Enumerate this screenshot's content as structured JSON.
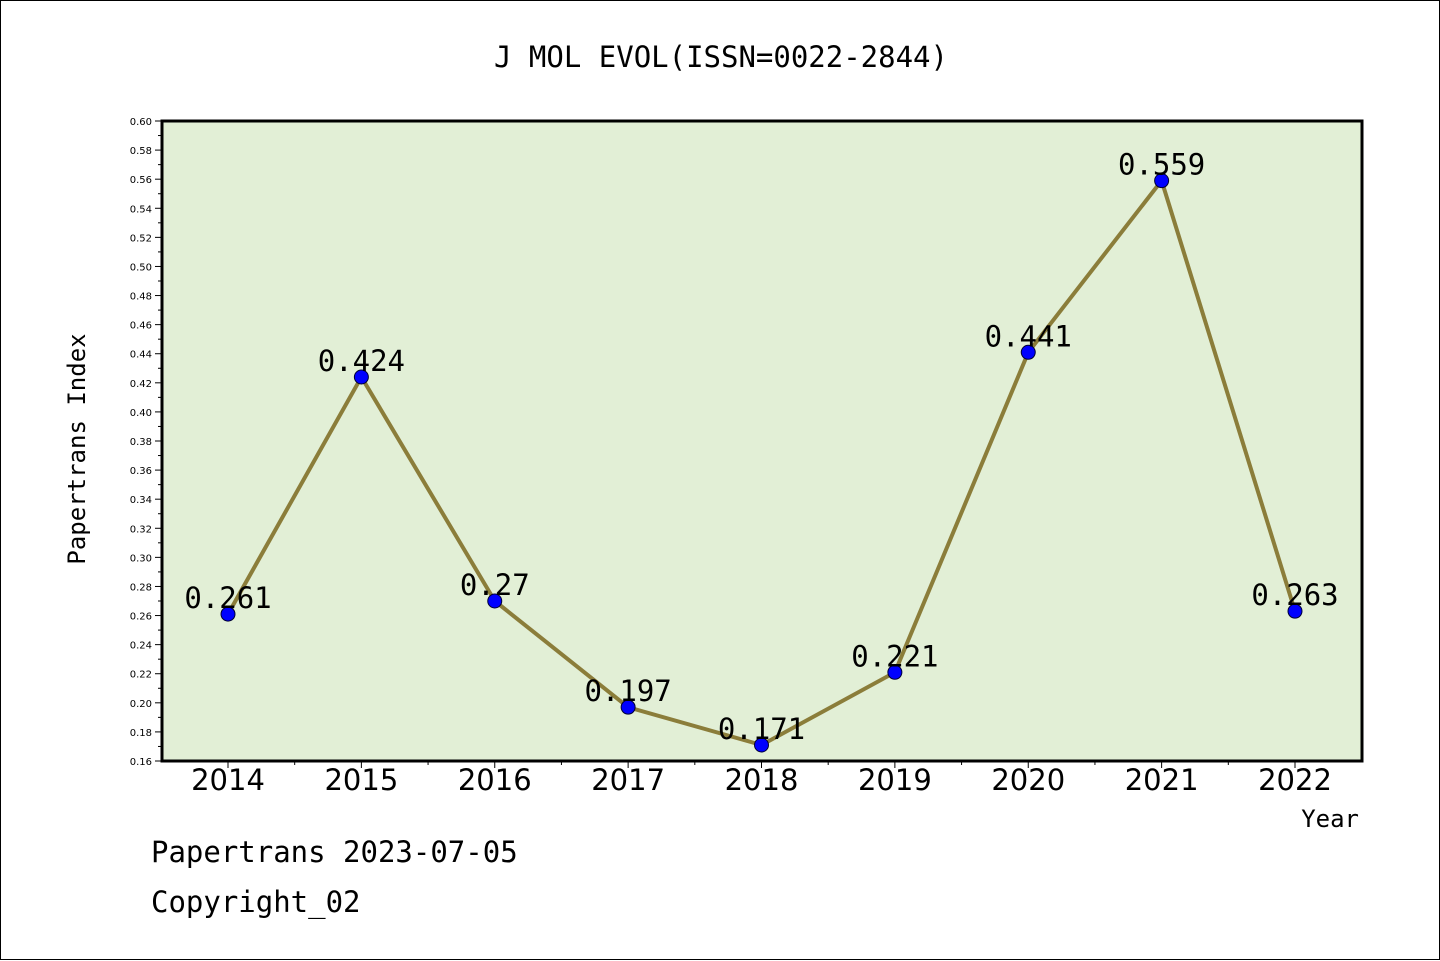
{
  "chart_data": {
    "type": "line",
    "title": "J MOL EVOL(ISSN=0022-2844)",
    "xlabel": "Year",
    "ylabel": "Papertrans Index",
    "categories": [
      "2014",
      "2015",
      "2016",
      "2017",
      "2018",
      "2019",
      "2020",
      "2021",
      "2022"
    ],
    "series": [
      {
        "values": [
          0.261,
          0.424,
          0.27,
          0.197,
          0.171,
          0.221,
          0.441,
          0.559,
          0.263
        ],
        "data_labels": [
          "0.261",
          "0.424",
          "0.27",
          "0.197",
          "0.171",
          "0.221",
          "0.441",
          "0.559",
          "0.263"
        ]
      }
    ],
    "ylim": [
      0.16,
      0.6
    ],
    "y_ticks": [
      "0.16",
      "0.18",
      "0.20",
      "0.22",
      "0.24",
      "0.26",
      "0.28",
      "0.30",
      "0.32",
      "0.34",
      "0.36",
      "0.38",
      "0.40",
      "0.42",
      "0.44",
      "0.46",
      "0.48",
      "0.50",
      "0.52",
      "0.54",
      "0.56",
      "0.58",
      "0.60"
    ],
    "grid": false,
    "legend": "none",
    "colors": {
      "plot_background": "#e2efd6",
      "line": "#8b7d3a",
      "marker": "#0000ff"
    }
  },
  "footer": {
    "line1": "Papertrans 2023-07-05",
    "line2": "Copyright_02"
  }
}
